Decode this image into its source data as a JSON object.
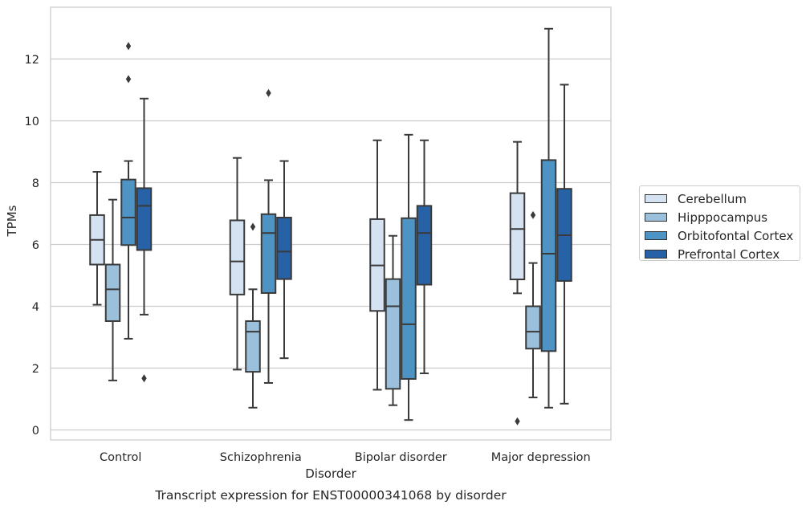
{
  "chart_data": {
    "type": "box",
    "title": "Transcript expression for ENST00000341068 by disorder",
    "xlabel": "Disorder",
    "ylabel": "TPMs",
    "ylim": [
      -0.35,
      13.7
    ],
    "yticks": [
      0,
      2,
      4,
      6,
      8,
      10,
      12
    ],
    "categories": [
      "Control",
      "Schizophrenia",
      "Bipolar disorder",
      "Major depression"
    ],
    "grid": "horizontal",
    "legend_position": "right",
    "series": [
      {
        "name": "Cerebellum",
        "color": "#d5e2f1",
        "boxes": [
          {
            "whislo": 4.05,
            "q1": 5.35,
            "med": 6.15,
            "q3": 6.95,
            "whishi": 8.35,
            "fliers": []
          },
          {
            "whislo": 1.95,
            "q1": 4.38,
            "med": 5.45,
            "q3": 6.78,
            "whishi": 8.8,
            "fliers": []
          },
          {
            "whislo": 1.3,
            "q1": 3.85,
            "med": 5.32,
            "q3": 6.82,
            "whishi": 9.37,
            "fliers": []
          },
          {
            "whislo": 4.42,
            "q1": 4.87,
            "med": 6.5,
            "q3": 7.66,
            "whishi": 9.32,
            "fliers": [
              0.28
            ]
          }
        ]
      },
      {
        "name": "Hipppocampus",
        "color": "#9ac0db",
        "boxes": [
          {
            "whislo": 1.6,
            "q1": 3.52,
            "med": 4.55,
            "q3": 5.35,
            "whishi": 7.45,
            "fliers": []
          },
          {
            "whislo": 0.72,
            "q1": 1.88,
            "med": 3.18,
            "q3": 3.52,
            "whishi": 4.55,
            "fliers": [
              6.57
            ]
          },
          {
            "whislo": 0.8,
            "q1": 1.33,
            "med": 4.0,
            "q3": 4.88,
            "whishi": 6.28,
            "fliers": []
          },
          {
            "whislo": 1.05,
            "q1": 2.63,
            "med": 3.18,
            "q3": 4.0,
            "whishi": 5.4,
            "fliers": [
              6.95
            ]
          }
        ]
      },
      {
        "name": "Orbitofontal Cortex",
        "color": "#4d93c4",
        "boxes": [
          {
            "whislo": 2.95,
            "q1": 5.98,
            "med": 6.87,
            "q3": 8.1,
            "whishi": 8.7,
            "fliers": [
              12.42,
              11.35
            ]
          },
          {
            "whislo": 1.52,
            "q1": 4.43,
            "med": 6.37,
            "q3": 6.98,
            "whishi": 8.08,
            "fliers": [
              10.9
            ]
          },
          {
            "whislo": 0.32,
            "q1": 1.65,
            "med": 3.42,
            "q3": 6.85,
            "whishi": 9.55,
            "fliers": []
          },
          {
            "whislo": 0.72,
            "q1": 2.55,
            "med": 5.7,
            "q3": 8.73,
            "whishi": 12.98,
            "fliers": []
          }
        ]
      },
      {
        "name": "Prefrontal Cortex",
        "color": "#2662a5",
        "boxes": [
          {
            "whislo": 3.73,
            "q1": 5.82,
            "med": 7.25,
            "q3": 7.82,
            "whishi": 10.72,
            "fliers": [
              1.67
            ]
          },
          {
            "whislo": 2.32,
            "q1": 4.88,
            "med": 5.77,
            "q3": 6.87,
            "whishi": 8.7,
            "fliers": []
          },
          {
            "whislo": 1.83,
            "q1": 4.7,
            "med": 6.37,
            "q3": 7.25,
            "whishi": 9.37,
            "fliers": []
          },
          {
            "whislo": 0.85,
            "q1": 4.82,
            "med": 6.3,
            "q3": 7.8,
            "whishi": 11.17,
            "fliers": []
          }
        ]
      }
    ]
  }
}
